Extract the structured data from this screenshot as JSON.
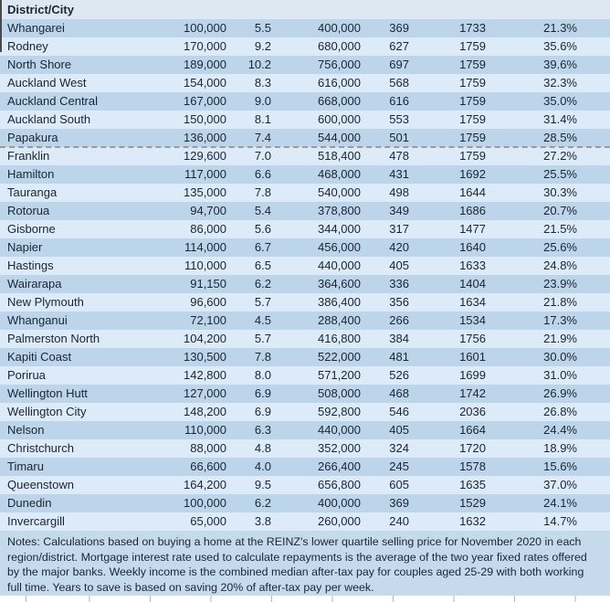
{
  "header": {
    "label": "District/City"
  },
  "rows": [
    {
      "name": "Whangarei",
      "values": [
        "100,000",
        "5.5",
        "400,000",
        "369",
        "1733",
        "21.3%"
      ]
    },
    {
      "name": "Rodney",
      "values": [
        "170,000",
        "9.2",
        "680,000",
        "627",
        "1759",
        "35.6%"
      ]
    },
    {
      "name": "North Shore",
      "values": [
        "189,000",
        "10.2",
        "756,000",
        "697",
        "1759",
        "39.6%"
      ]
    },
    {
      "name": "Auckland West",
      "values": [
        "154,000",
        "8.3",
        "616,000",
        "568",
        "1759",
        "32.3%"
      ]
    },
    {
      "name": "Auckland Central",
      "values": [
        "167,000",
        "9.0",
        "668,000",
        "616",
        "1759",
        "35.0%"
      ]
    },
    {
      "name": "Auckland South",
      "values": [
        "150,000",
        "8.1",
        "600,000",
        "553",
        "1759",
        "31.4%"
      ]
    },
    {
      "name": "Papakura",
      "values": [
        "136,000",
        "7.4",
        "544,000",
        "501",
        "1759",
        "28.5%"
      ]
    },
    {
      "name": "Franklin",
      "values": [
        "129,600",
        "7.0",
        "518,400",
        "478",
        "1759",
        "27.2%"
      ]
    },
    {
      "name": "Hamilton",
      "values": [
        "117,000",
        "6.6",
        "468,000",
        "431",
        "1692",
        "25.5%"
      ]
    },
    {
      "name": "Tauranga",
      "values": [
        "135,000",
        "7.8",
        "540,000",
        "498",
        "1644",
        "30.3%"
      ]
    },
    {
      "name": "Rotorua",
      "values": [
        "94,700",
        "5.4",
        "378,800",
        "349",
        "1686",
        "20.7%"
      ]
    },
    {
      "name": "Gisborne",
      "values": [
        "86,000",
        "5.6",
        "344,000",
        "317",
        "1477",
        "21.5%"
      ]
    },
    {
      "name": "Napier",
      "values": [
        "114,000",
        "6.7",
        "456,000",
        "420",
        "1640",
        "25.6%"
      ]
    },
    {
      "name": "Hastings",
      "values": [
        "110,000",
        "6.5",
        "440,000",
        "405",
        "1633",
        "24.8%"
      ]
    },
    {
      "name": "Wairarapa",
      "values": [
        "91,150",
        "6.2",
        "364,600",
        "336",
        "1404",
        "23.9%"
      ]
    },
    {
      "name": "New Plymouth",
      "values": [
        "96,600",
        "5.7",
        "386,400",
        "356",
        "1634",
        "21.8%"
      ]
    },
    {
      "name": "Whanganui",
      "values": [
        "72,100",
        "4.5",
        "288,400",
        "266",
        "1534",
        "17.3%"
      ]
    },
    {
      "name": "Palmerston North",
      "values": [
        "104,200",
        "5.7",
        "416,800",
        "384",
        "1756",
        "21.9%"
      ]
    },
    {
      "name": "Kapiti Coast",
      "values": [
        "130,500",
        "7.8",
        "522,000",
        "481",
        "1601",
        "30.0%"
      ]
    },
    {
      "name": "Porirua",
      "values": [
        "142,800",
        "8.0",
        "571,200",
        "526",
        "1699",
        "31.0%"
      ]
    },
    {
      "name": "Wellington Hutt",
      "values": [
        "127,000",
        "6.9",
        "508,000",
        "468",
        "1742",
        "26.9%"
      ],
      "error_cells": [
        0,
        1
      ]
    },
    {
      "name": "Wellington City",
      "values": [
        "148,200",
        "6.9",
        "592,800",
        "546",
        "2036",
        "26.8%"
      ]
    },
    {
      "name": "Nelson",
      "values": [
        "110,000",
        "6.3",
        "440,000",
        "405",
        "1664",
        "24.4%"
      ]
    },
    {
      "name": "Christchurch",
      "values": [
        "88,000",
        "4.8",
        "352,000",
        "324",
        "1720",
        "18.9%"
      ]
    },
    {
      "name": "Timaru",
      "values": [
        "66,600",
        "4.0",
        "266,400",
        "245",
        "1578",
        "15.6%"
      ]
    },
    {
      "name": "Queenstown",
      "values": [
        "164,200",
        "9.5",
        "656,800",
        "605",
        "1635",
        "37.0%"
      ]
    },
    {
      "name": "Dunedin",
      "values": [
        "100,000",
        "6.2",
        "400,000",
        "369",
        "1529",
        "24.1%"
      ]
    },
    {
      "name": "Invercargill",
      "values": [
        "65,000",
        "3.8",
        "260,000",
        "240",
        "1632",
        "14.7%"
      ]
    }
  ],
  "page_break_after": "Papakura",
  "notes": "Notes: Calculations based on buying a home at the REINZ's lower quartile selling price for November 2020 in each region/district. Mortgage interest rate used to calculate repayments is the average of the two year fixed rates offered by the major banks. Weekly income is the combined median after-tax pay for couples aged 25-29 with both working full time. Years to save is based on saving 20% of after-tax pay per week.",
  "colors": {
    "header_bg": "#dde8f3",
    "stripe_dark": "#bcd5ea",
    "stripe_light": "#dcebf7",
    "notes_bg": "#c6daee",
    "text": "#1a2534",
    "dashed_line": "#9a9a9a",
    "error_marker": "#1e7b34",
    "grid_tick": "#aeb6bd"
  }
}
